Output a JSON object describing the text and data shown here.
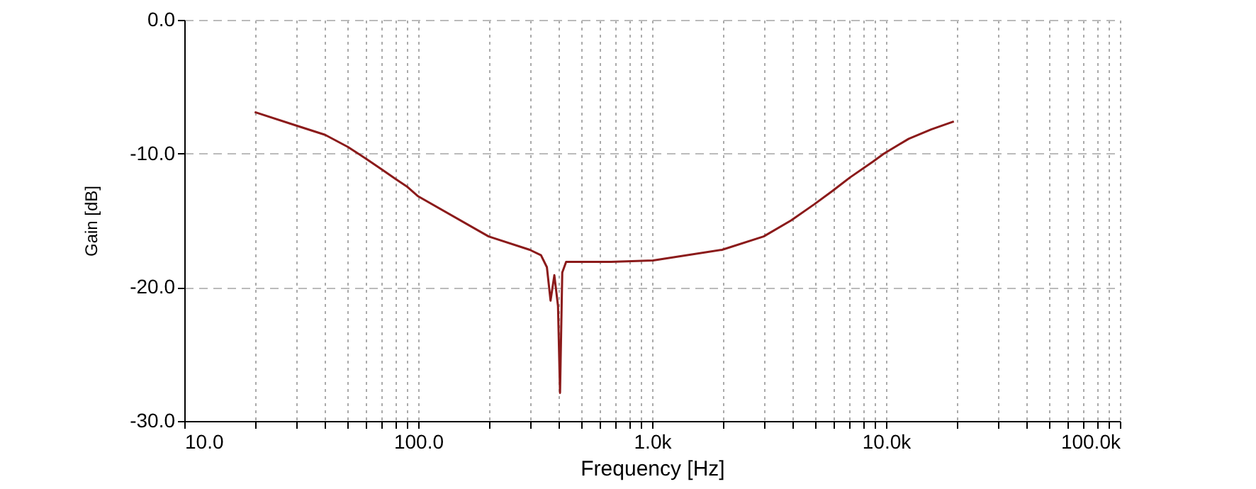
{
  "chart_data": {
    "type": "line",
    "xlabel": "Frequency [Hz]",
    "ylabel": "Gain [dB]",
    "log": "x",
    "grid": true,
    "marker": "none",
    "line_style": "solid",
    "xlim": [
      10,
      100000
    ],
    "ylim": [
      -30,
      0
    ],
    "xticks": [
      {
        "value": 10,
        "label": "10.0"
      },
      {
        "value": 20,
        "label": null
      },
      {
        "value": 30,
        "label": null
      },
      {
        "value": 40,
        "label": null
      },
      {
        "value": 50,
        "label": null
      },
      {
        "value": 60,
        "label": null
      },
      {
        "value": 70,
        "label": null
      },
      {
        "value": 80,
        "label": null
      },
      {
        "value": 90,
        "label": null
      },
      {
        "value": 100,
        "label": "100.0"
      },
      {
        "value": 200,
        "label": null
      },
      {
        "value": 300,
        "label": null
      },
      {
        "value": 400,
        "label": null
      },
      {
        "value": 500,
        "label": null
      },
      {
        "value": 600,
        "label": null
      },
      {
        "value": 700,
        "label": null
      },
      {
        "value": 800,
        "label": null
      },
      {
        "value": 900,
        "label": null
      },
      {
        "value": 1000,
        "label": "1.0k"
      },
      {
        "value": 2000,
        "label": null
      },
      {
        "value": 3000,
        "label": null
      },
      {
        "value": 4000,
        "label": null
      },
      {
        "value": 5000,
        "label": null
      },
      {
        "value": 6000,
        "label": null
      },
      {
        "value": 7000,
        "label": null
      },
      {
        "value": 8000,
        "label": null
      },
      {
        "value": 9000,
        "label": null
      },
      {
        "value": 10000,
        "label": "10.0k"
      },
      {
        "value": 20000,
        "label": null
      },
      {
        "value": 30000,
        "label": null
      },
      {
        "value": 40000,
        "label": null
      },
      {
        "value": 50000,
        "label": null
      },
      {
        "value": 60000,
        "label": null
      },
      {
        "value": 70000,
        "label": null
      },
      {
        "value": 80000,
        "label": null
      },
      {
        "value": 90000,
        "label": null
      },
      {
        "value": 100000,
        "label": "100.0k"
      }
    ],
    "yticks": [
      {
        "value": -30,
        "label": "-30.0"
      },
      {
        "value": -20,
        "label": "-20.0"
      },
      {
        "value": -10,
        "label": "-10.0"
      },
      {
        "value": 0,
        "label": "0.0"
      }
    ],
    "series": [
      {
        "color": "#8b1a1a",
        "x": [
          20,
          30,
          40,
          50,
          60,
          70,
          80,
          90,
          100,
          200,
          300,
          335,
          355,
          368,
          382,
          396,
          404,
          413,
          429,
          667,
          1010,
          1990,
          3000,
          3930,
          4930,
          5900,
          7000,
          8800,
          9800,
          12500,
          15600,
          19500
        ],
        "values": [
          -6.9,
          -7.9,
          -8.6,
          -9.5,
          -10.4,
          -11.2,
          -11.9,
          -12.5,
          -13.2,
          -16.2,
          -17.2,
          -17.6,
          -18.5,
          -21.0,
          -19.1,
          -21.4,
          -27.9,
          -18.9,
          -18.1,
          -18.1,
          -18.0,
          -17.2,
          -16.2,
          -15.0,
          -13.8,
          -12.8,
          -11.8,
          -10.6,
          -10.0,
          -8.9,
          -8.2,
          -7.6
        ]
      }
    ]
  }
}
